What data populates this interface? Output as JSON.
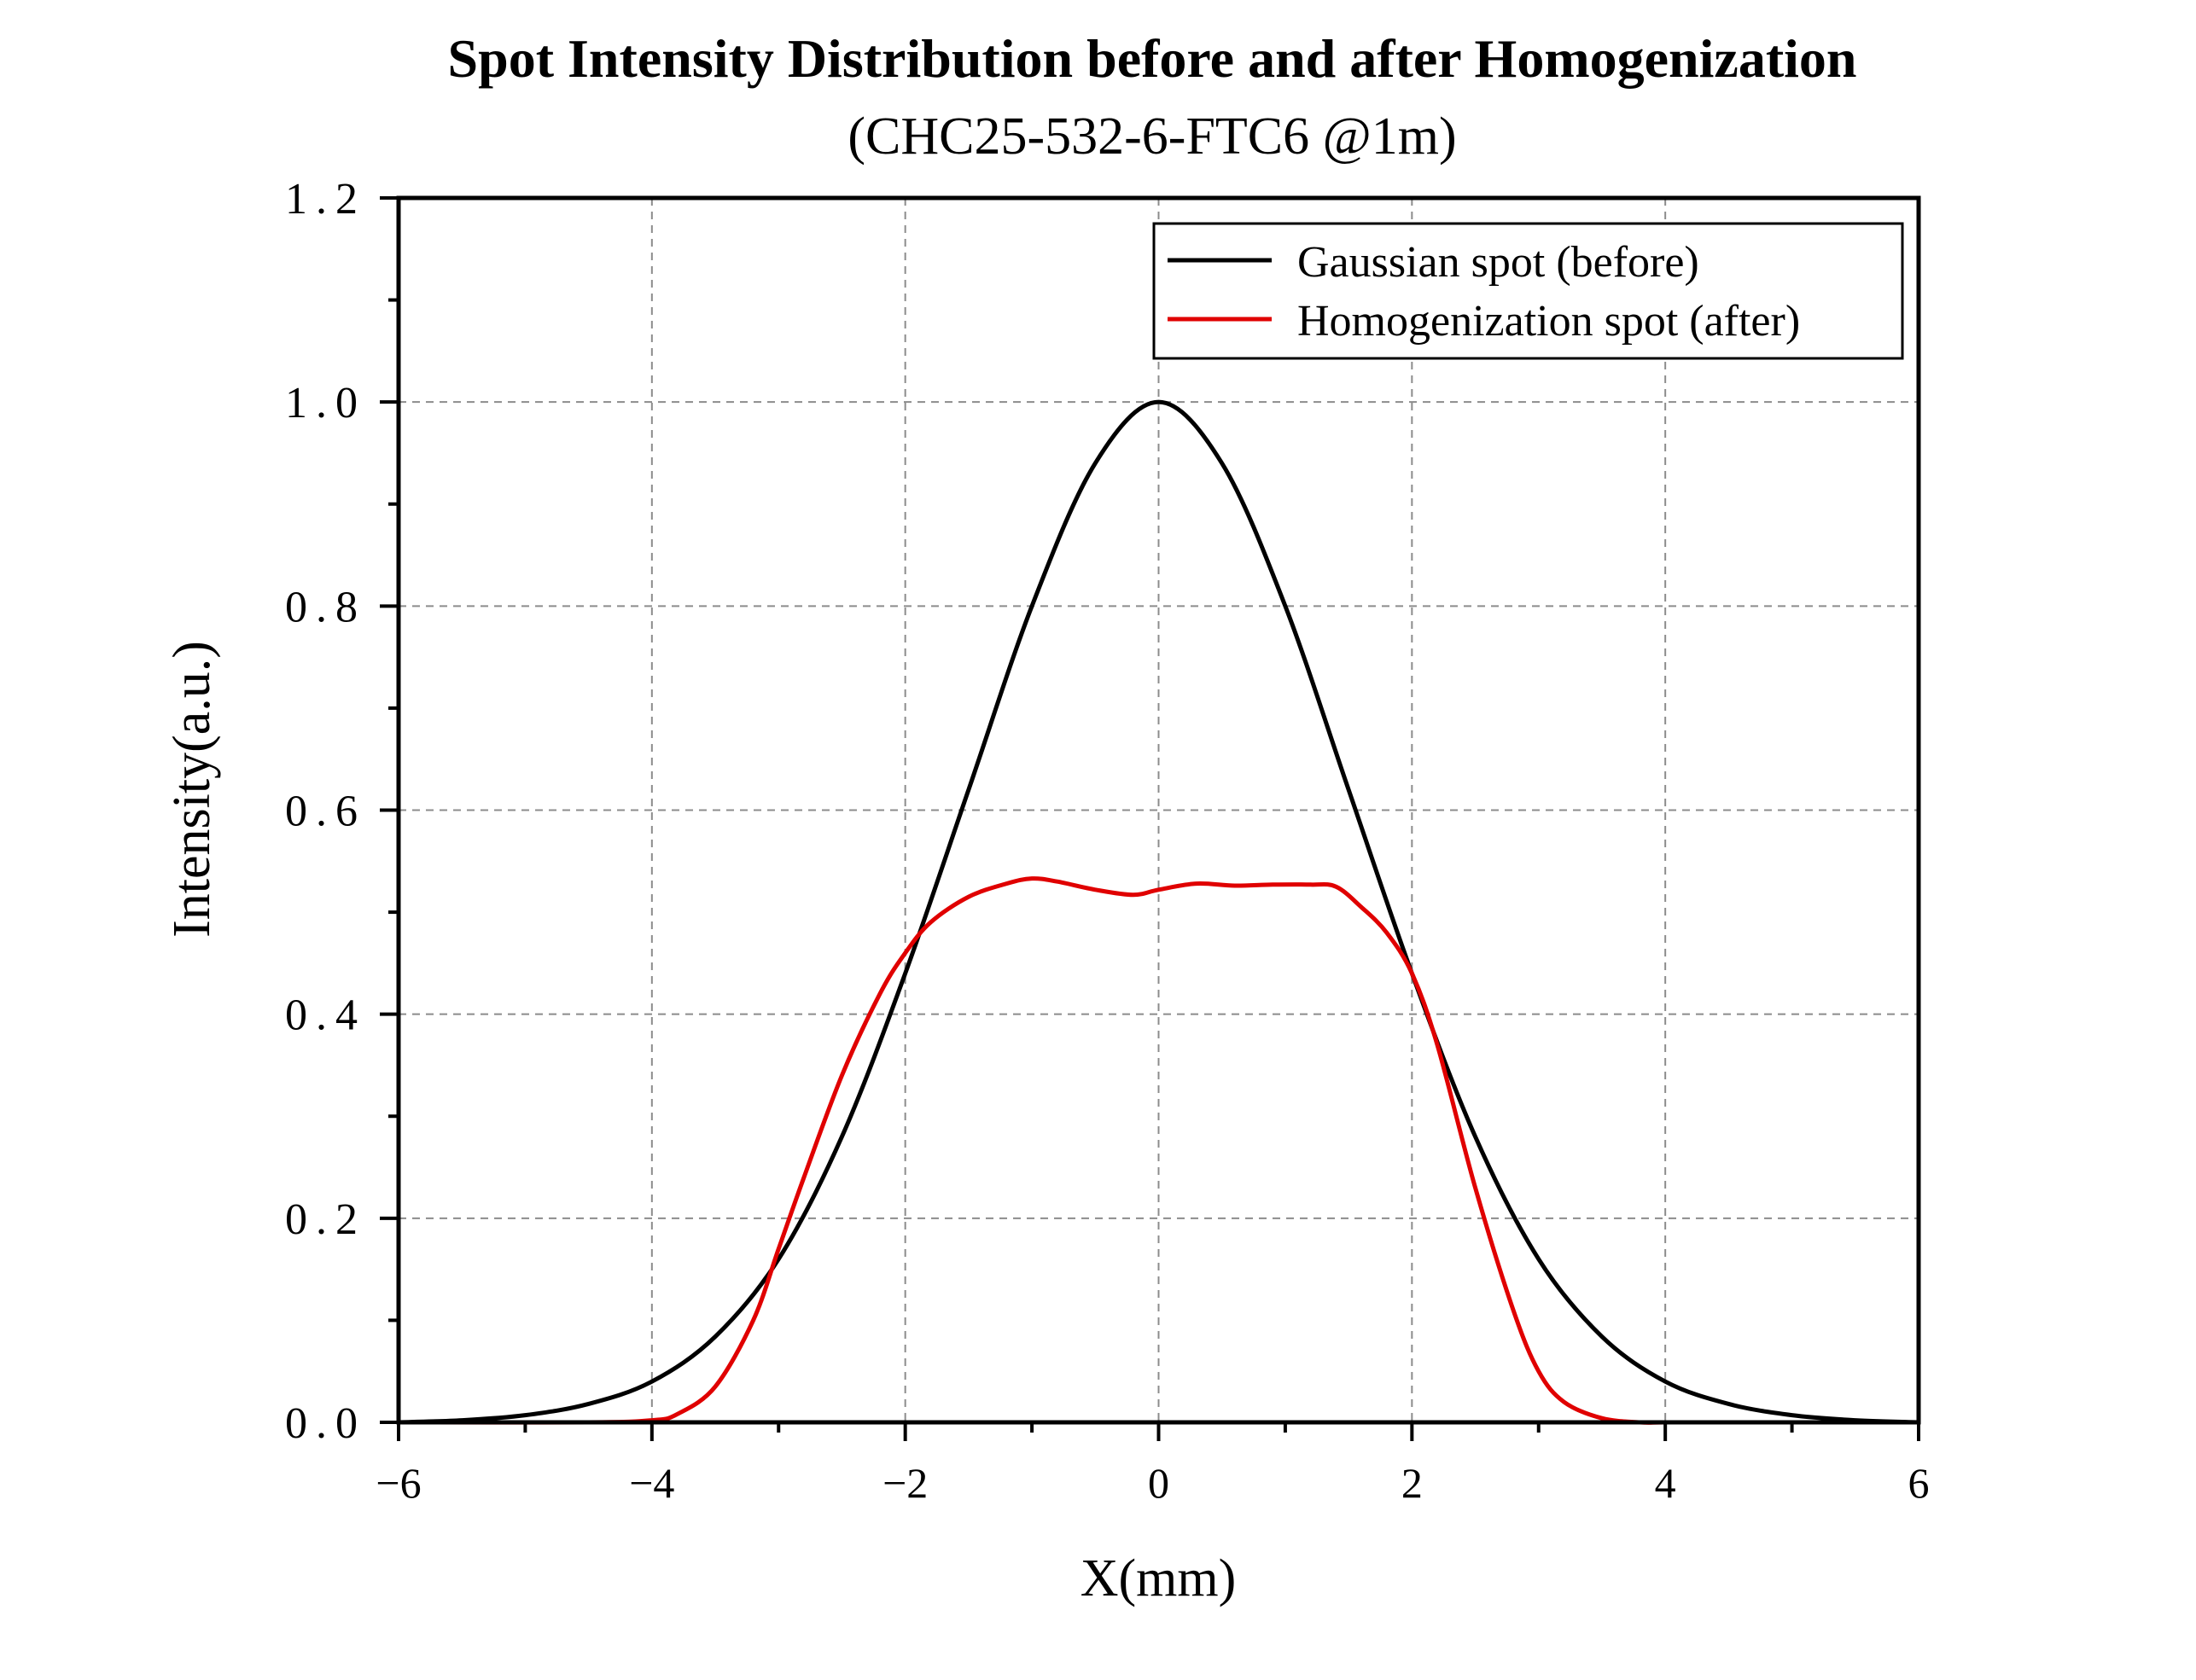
{
  "chart_data": {
    "type": "line",
    "title": "Spot Intensity Distribution before and after Homogenization",
    "subtitle": "(CHC25-532-6-FTC6 @1m)",
    "xlabel": "X(mm)",
    "ylabel": "Intensity(a.u.)",
    "xlim": [
      -6,
      6
    ],
    "ylim": [
      0,
      1.2
    ],
    "x_ticks": [
      -6,
      -4,
      -2,
      0,
      2,
      4,
      6
    ],
    "x_tick_labels": [
      "−6",
      "−4",
      "−2",
      "0",
      "2",
      "4",
      "6"
    ],
    "y_ticks": [
      0,
      0.2,
      0.4,
      0.6,
      0.8,
      1.0,
      1.2
    ],
    "y_tick_labels": [
      "0.0",
      "0.2",
      "0.4",
      "0.6",
      "0.8",
      "1.0",
      "1.2"
    ],
    "grid": true,
    "legend_position": "top-right",
    "series": [
      {
        "name": "Gaussian spot (before)",
        "color": "#000000",
        "x": [
          -6,
          -5.5,
          -5,
          -4.5,
          -4,
          -3.5,
          -3,
          -2.5,
          -2,
          -1.5,
          -1,
          -0.5,
          0,
          0.5,
          1,
          1.5,
          2,
          2.5,
          3,
          3.5,
          4,
          4.5,
          5,
          5.5,
          6
        ],
        "y": [
          0.0,
          0.002,
          0.007,
          0.018,
          0.04,
          0.084,
          0.16,
          0.28,
          0.44,
          0.62,
          0.8,
          0.94,
          1.0,
          0.94,
          0.8,
          0.62,
          0.44,
          0.28,
          0.16,
          0.084,
          0.04,
          0.018,
          0.007,
          0.002,
          0.0
        ]
      },
      {
        "name": "Homogenization spot (after)",
        "color": "#e00000",
        "x": [
          -6,
          -4.5,
          -4,
          -3.8,
          -3.5,
          -3.2,
          -3,
          -2.8,
          -2.5,
          -2.2,
          -2,
          -1.8,
          -1.5,
          -1.2,
          -1,
          -0.8,
          -0.5,
          -0.2,
          0,
          0.3,
          0.6,
          0.9,
          1.2,
          1.4,
          1.6,
          1.8,
          2,
          2.2,
          2.5,
          2.8,
          3,
          3.2,
          3.5,
          3.8,
          4,
          4.5,
          6
        ],
        "y": [
          0.0,
          0.0,
          0.002,
          0.008,
          0.035,
          0.1,
          0.17,
          0.24,
          0.34,
          0.42,
          0.46,
          0.49,
          0.515,
          0.528,
          0.533,
          0.53,
          0.522,
          0.517,
          0.522,
          0.528,
          0.526,
          0.527,
          0.527,
          0.525,
          0.505,
          0.48,
          0.44,
          0.37,
          0.23,
          0.11,
          0.05,
          0.02,
          0.004,
          0.0,
          0.0,
          0.0,
          0.0
        ]
      }
    ]
  }
}
